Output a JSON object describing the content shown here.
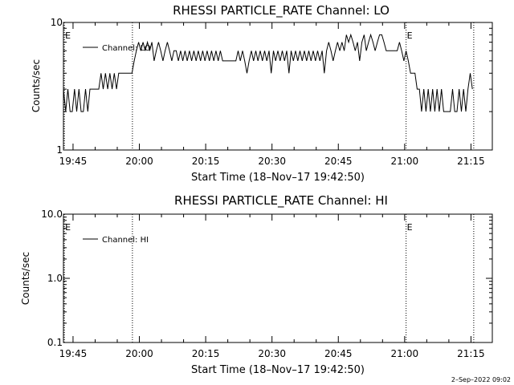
{
  "chart_data": [
    {
      "type": "line",
      "title": "RHESSI PARTICLE_RATE Channel: LO",
      "xlabel": "Start Time (18–Nov–17 19:42:50)",
      "ylabel": "Counts/sec",
      "x_unit": "minutes after 19:42:50",
      "y_scale": "log",
      "ylim": [
        1,
        10
      ],
      "xlim": [
        0,
        97
      ],
      "yticks": [
        {
          "v": 10,
          "label": "10"
        },
        {
          "v": 1,
          "label": "1"
        }
      ],
      "xticks": [
        {
          "v": 2.17,
          "label": "19:45"
        },
        {
          "v": 17.17,
          "label": "20:00"
        },
        {
          "v": 32.17,
          "label": "20:15"
        },
        {
          "v": 47.17,
          "label": "20:30"
        },
        {
          "v": 62.17,
          "label": "20:45"
        },
        {
          "v": 77.17,
          "label": "21:00"
        },
        {
          "v": 92.17,
          "label": "21:15"
        }
      ],
      "markers": [
        {
          "x": 0.2,
          "label": "E"
        },
        {
          "x": 15.6,
          "label": ""
        },
        {
          "x": 77.5,
          "label": "E"
        },
        {
          "x": 92.8,
          "label": ""
        }
      ],
      "legend": "top-left",
      "series": [
        {
          "name": "Channel: LO",
          "color": "#000000",
          "points": [
            [
              0.0,
              3.0
            ],
            [
              0.5,
              2.0
            ],
            [
              1.0,
              3.0
            ],
            [
              1.5,
              2.0
            ],
            [
              2.0,
              2.0
            ],
            [
              2.5,
              3.0
            ],
            [
              3.0,
              2.0
            ],
            [
              3.5,
              3.0
            ],
            [
              4.0,
              2.0
            ],
            [
              4.5,
              2.0
            ],
            [
              5.0,
              3.0
            ],
            [
              5.5,
              2.0
            ],
            [
              6.0,
              3.0
            ],
            [
              6.5,
              3.0
            ],
            [
              7.0,
              3.0
            ],
            [
              7.5,
              3.0
            ],
            [
              8.0,
              3.0
            ],
            [
              8.5,
              4.0
            ],
            [
              9.0,
              3.0
            ],
            [
              9.5,
              4.0
            ],
            [
              10.0,
              3.0
            ],
            [
              10.5,
              4.0
            ],
            [
              11.0,
              3.0
            ],
            [
              11.5,
              4.0
            ],
            [
              12.0,
              3.0
            ],
            [
              12.5,
              4.0
            ],
            [
              13.0,
              4.0
            ],
            [
              13.5,
              4.0
            ],
            [
              14.0,
              4.0
            ],
            [
              14.5,
              4.0
            ],
            [
              15.0,
              4.0
            ],
            [
              15.5,
              4.0
            ],
            [
              16.0,
              5.0
            ],
            [
              16.5,
              6.0
            ],
            [
              17.0,
              7.0
            ],
            [
              17.5,
              6.0
            ],
            [
              18.0,
              7.0
            ],
            [
              18.5,
              6.0
            ],
            [
              19.0,
              7.0
            ],
            [
              19.5,
              6.0
            ],
            [
              20.0,
              7.0
            ],
            [
              20.5,
              5.0
            ],
            [
              21.0,
              6.0
            ],
            [
              21.5,
              7.0
            ],
            [
              22.0,
              6.0
            ],
            [
              22.5,
              5.0
            ],
            [
              23.0,
              6.0
            ],
            [
              23.5,
              7.0
            ],
            [
              24.0,
              6.0
            ],
            [
              24.5,
              5.0
            ],
            [
              25.0,
              6.0
            ],
            [
              25.5,
              6.0
            ],
            [
              26.0,
              5.0
            ],
            [
              26.5,
              6.0
            ],
            [
              27.0,
              5.0
            ],
            [
              27.5,
              6.0
            ],
            [
              28.0,
              5.0
            ],
            [
              28.5,
              6.0
            ],
            [
              29.0,
              5.0
            ],
            [
              29.5,
              6.0
            ],
            [
              30.0,
              5.0
            ],
            [
              30.5,
              6.0
            ],
            [
              31.0,
              5.0
            ],
            [
              31.5,
              6.0
            ],
            [
              32.0,
              5.0
            ],
            [
              32.5,
              6.0
            ],
            [
              33.0,
              5.0
            ],
            [
              33.5,
              6.0
            ],
            [
              34.0,
              5.0
            ],
            [
              34.5,
              6.0
            ],
            [
              35.0,
              5.0
            ],
            [
              35.5,
              6.0
            ],
            [
              36.0,
              5.0
            ],
            [
              36.5,
              5.0
            ],
            [
              37.0,
              5.0
            ],
            [
              37.5,
              5.0
            ],
            [
              38.0,
              5.0
            ],
            [
              38.5,
              5.0
            ],
            [
              39.0,
              5.0
            ],
            [
              39.5,
              6.0
            ],
            [
              40.0,
              5.0
            ],
            [
              40.5,
              6.0
            ],
            [
              41.0,
              5.0
            ],
            [
              41.5,
              4.0
            ],
            [
              42.0,
              5.0
            ],
            [
              42.5,
              6.0
            ],
            [
              43.0,
              5.0
            ],
            [
              43.5,
              6.0
            ],
            [
              44.0,
              5.0
            ],
            [
              44.5,
              6.0
            ],
            [
              45.0,
              5.0
            ],
            [
              45.5,
              6.0
            ],
            [
              46.0,
              5.0
            ],
            [
              46.5,
              6.0
            ],
            [
              47.0,
              4.0
            ],
            [
              47.5,
              6.0
            ],
            [
              48.0,
              5.0
            ],
            [
              48.5,
              6.0
            ],
            [
              49.0,
              5.0
            ],
            [
              49.5,
              6.0
            ],
            [
              50.0,
              5.0
            ],
            [
              50.5,
              6.0
            ],
            [
              51.0,
              4.0
            ],
            [
              51.5,
              6.0
            ],
            [
              52.0,
              5.0
            ],
            [
              52.5,
              6.0
            ],
            [
              53.0,
              5.0
            ],
            [
              53.5,
              6.0
            ],
            [
              54.0,
              5.0
            ],
            [
              54.5,
              6.0
            ],
            [
              55.0,
              5.0
            ],
            [
              55.5,
              6.0
            ],
            [
              56.0,
              5.0
            ],
            [
              56.5,
              6.0
            ],
            [
              57.0,
              5.0
            ],
            [
              57.5,
              6.0
            ],
            [
              58.0,
              5.0
            ],
            [
              58.5,
              6.0
            ],
            [
              59.0,
              4.0
            ],
            [
              59.5,
              6.0
            ],
            [
              60.0,
              7.0
            ],
            [
              60.5,
              6.0
            ],
            [
              61.0,
              5.0
            ],
            [
              61.5,
              6.0
            ],
            [
              62.0,
              7.0
            ],
            [
              62.5,
              6.0
            ],
            [
              63.0,
              7.0
            ],
            [
              63.5,
              6.0
            ],
            [
              64.0,
              8.0
            ],
            [
              64.5,
              7.0
            ],
            [
              65.0,
              8.0
            ],
            [
              65.5,
              7.0
            ],
            [
              66.0,
              6.0
            ],
            [
              66.5,
              7.0
            ],
            [
              67.0,
              5.0
            ],
            [
              67.5,
              7.0
            ],
            [
              68.0,
              8.0
            ],
            [
              68.5,
              6.0
            ],
            [
              69.0,
              7.0
            ],
            [
              69.5,
              8.0
            ],
            [
              70.0,
              7.0
            ],
            [
              70.5,
              6.0
            ],
            [
              71.0,
              7.0
            ],
            [
              71.5,
              8.0
            ],
            [
              72.0,
              8.0
            ],
            [
              72.5,
              7.0
            ],
            [
              73.0,
              6.0
            ],
            [
              73.5,
              6.0
            ],
            [
              74.0,
              6.0
            ],
            [
              74.5,
              6.0
            ],
            [
              75.0,
              6.0
            ],
            [
              75.5,
              6.0
            ],
            [
              76.0,
              7.0
            ],
            [
              76.5,
              6.0
            ],
            [
              77.0,
              5.0
            ],
            [
              77.5,
              6.0
            ],
            [
              78.0,
              5.0
            ],
            [
              78.5,
              4.0
            ],
            [
              79.0,
              4.0
            ],
            [
              79.5,
              4.0
            ],
            [
              80.0,
              3.0
            ],
            [
              80.5,
              3.0
            ],
            [
              81.0,
              2.0
            ],
            [
              81.5,
              3.0
            ],
            [
              82.0,
              2.0
            ],
            [
              82.5,
              3.0
            ],
            [
              83.0,
              2.0
            ],
            [
              83.5,
              3.0
            ],
            [
              84.0,
              2.0
            ],
            [
              84.5,
              3.0
            ],
            [
              85.0,
              2.0
            ],
            [
              85.5,
              3.0
            ],
            [
              86.0,
              2.0
            ],
            [
              86.5,
              2.0
            ],
            [
              87.0,
              2.0
            ],
            [
              87.5,
              2.0
            ],
            [
              88.0,
              3.0
            ],
            [
              88.5,
              2.0
            ],
            [
              89.0,
              2.0
            ],
            [
              89.5,
              3.0
            ],
            [
              90.0,
              2.0
            ],
            [
              90.5,
              3.0
            ],
            [
              91.0,
              2.0
            ],
            [
              91.5,
              3.0
            ],
            [
              92.0,
              4.0
            ],
            [
              92.5,
              3.0
            ]
          ]
        }
      ]
    },
    {
      "type": "line",
      "title": "RHESSI PARTICLE_RATE Channel: HI",
      "xlabel": "Start Time (18–Nov–17 19:42:50)",
      "ylabel": "Counts/sec",
      "x_unit": "minutes after 19:42:50",
      "y_scale": "log",
      "ylim": [
        0.1,
        10
      ],
      "xlim": [
        0,
        97
      ],
      "yticks": [
        {
          "v": 10,
          "label": "10.0"
        },
        {
          "v": 1,
          "label": "1.0"
        },
        {
          "v": 0.1,
          "label": "0.1"
        }
      ],
      "xticks": [
        {
          "v": 2.17,
          "label": "19:45"
        },
        {
          "v": 17.17,
          "label": "20:00"
        },
        {
          "v": 32.17,
          "label": "20:15"
        },
        {
          "v": 47.17,
          "label": "20:30"
        },
        {
          "v": 62.17,
          "label": "20:45"
        },
        {
          "v": 77.17,
          "label": "21:00"
        },
        {
          "v": 92.17,
          "label": "21:15"
        }
      ],
      "markers": [
        {
          "x": 0.2,
          "label": "E"
        },
        {
          "x": 15.6,
          "label": ""
        },
        {
          "x": 77.5,
          "label": "E"
        },
        {
          "x": 92.8,
          "label": ""
        }
      ],
      "legend": "top-left",
      "series": [
        {
          "name": "Channel: HI",
          "color": "#000000",
          "points": []
        }
      ]
    }
  ],
  "footer": "2–Sep–2022 09:02"
}
